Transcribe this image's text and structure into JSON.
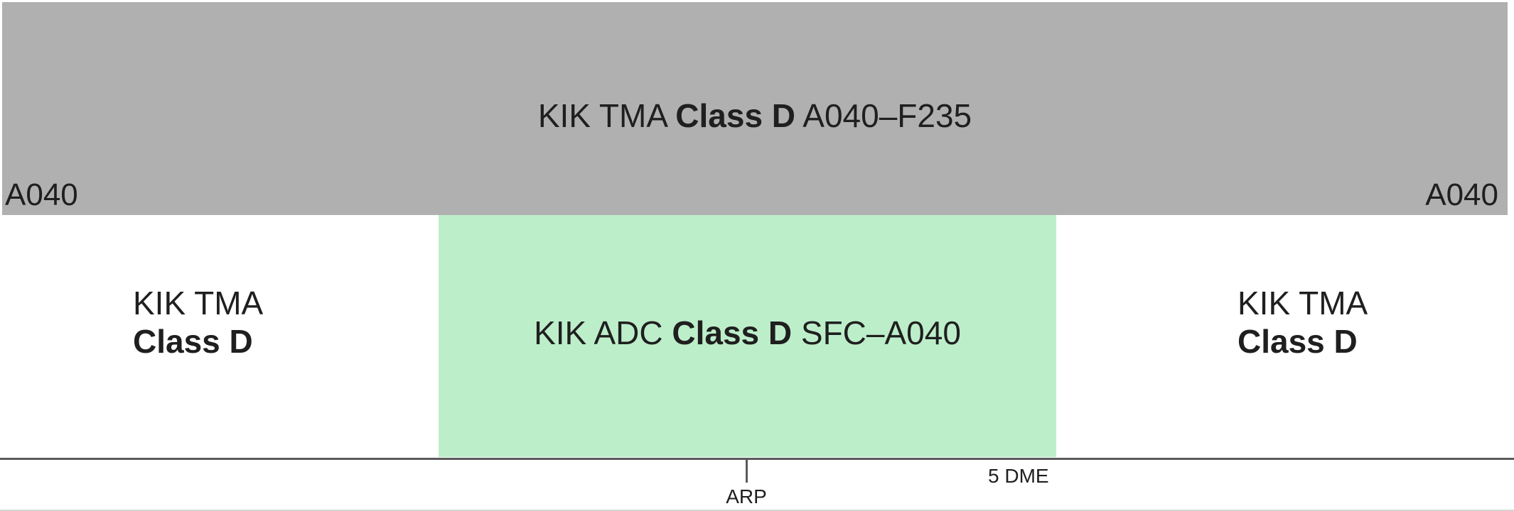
{
  "tma_band": {
    "name_prefix": "KIK TMA",
    "class_label": "Class D",
    "limits": "A040–F235",
    "floor_left": "A040",
    "floor_right": "A040",
    "color": "#b0b0b0"
  },
  "adc_zone": {
    "name_prefix": "KIK ADC",
    "class_label": "Class D",
    "limits": "SFC–A040",
    "color": "#bdeeca"
  },
  "side_left": {
    "name": "KIK TMA",
    "class_label": "Class D"
  },
  "side_right": {
    "name": "KIK TMA",
    "class_label": "Class D"
  },
  "ground": {
    "arp_label": "ARP",
    "dme_label": "5 DME"
  }
}
